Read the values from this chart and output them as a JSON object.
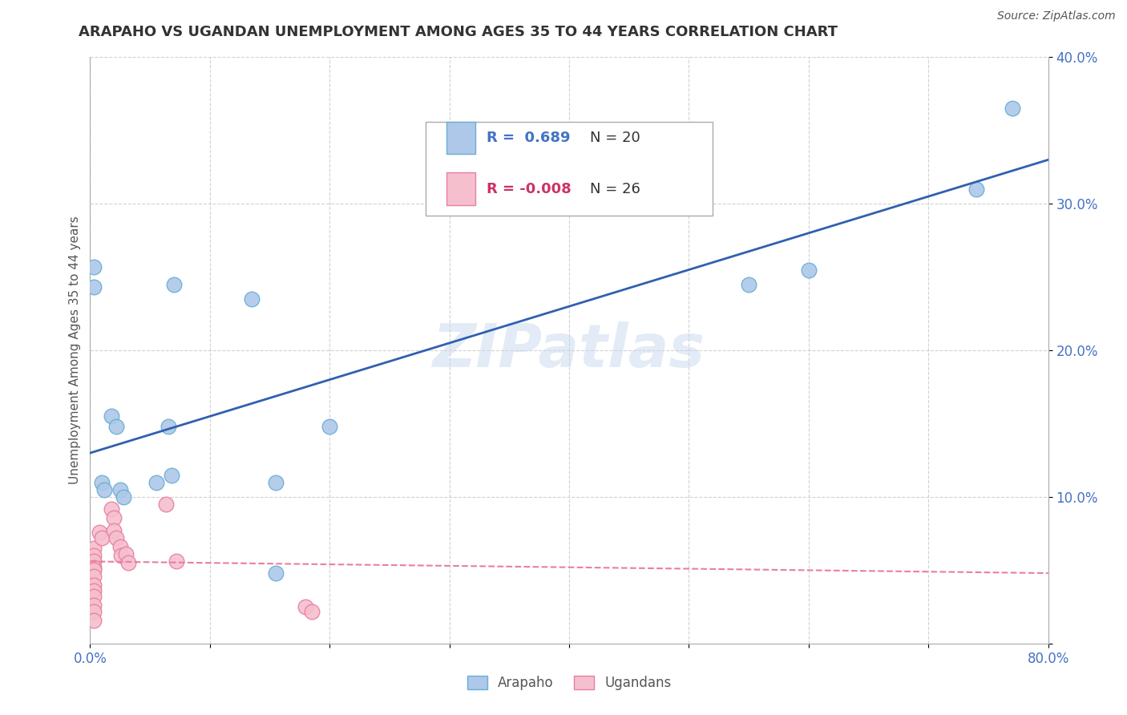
{
  "title": "ARAPAHO VS UGANDAN UNEMPLOYMENT AMONG AGES 35 TO 44 YEARS CORRELATION CHART",
  "source_text": "Source: ZipAtlas.com",
  "ylabel": "Unemployment Among Ages 35 to 44 years",
  "xlim": [
    0.0,
    0.8
  ],
  "ylim": [
    0.0,
    0.4
  ],
  "xticks": [
    0.0,
    0.1,
    0.2,
    0.3,
    0.4,
    0.5,
    0.6,
    0.7,
    0.8
  ],
  "xticklabels": [
    "0.0%",
    "",
    "",
    "",
    "",
    "",
    "",
    "",
    "80.0%"
  ],
  "yticks": [
    0.0,
    0.1,
    0.2,
    0.3,
    0.4
  ],
  "yticklabels": [
    "",
    "10.0%",
    "20.0%",
    "30.0%",
    "40.0%"
  ],
  "watermark": "ZIPatlas",
  "arapaho_color": "#adc8e8",
  "arapaho_edge_color": "#6aaed6",
  "ugandan_color": "#f5bfce",
  "ugandan_edge_color": "#e87fa0",
  "blue_line_color": "#3060b0",
  "pink_line_color": "#e87fa0",
  "grid_color": "#cccccc",
  "background_color": "#ffffff",
  "legend_R_arapaho": "R =  0.689",
  "legend_N_arapaho": "N = 20",
  "legend_R_ugandan": "R = -0.008",
  "legend_N_ugandan": "N = 26",
  "arapaho_x": [
    0.003,
    0.003,
    0.01,
    0.012,
    0.018,
    0.022,
    0.025,
    0.028,
    0.055,
    0.065,
    0.068,
    0.07,
    0.135,
    0.155,
    0.155,
    0.2,
    0.55,
    0.6,
    0.74,
    0.77
  ],
  "arapaho_y": [
    0.257,
    0.243,
    0.11,
    0.105,
    0.155,
    0.148,
    0.105,
    0.1,
    0.11,
    0.148,
    0.115,
    0.245,
    0.235,
    0.11,
    0.048,
    0.148,
    0.245,
    0.255,
    0.31,
    0.365
  ],
  "ugandan_x": [
    0.003,
    0.003,
    0.003,
    0.003,
    0.003,
    0.003,
    0.003,
    0.003,
    0.003,
    0.003,
    0.003,
    0.003,
    0.008,
    0.01,
    0.018,
    0.02,
    0.02,
    0.022,
    0.025,
    0.026,
    0.03,
    0.032,
    0.063,
    0.072,
    0.18,
    0.185
  ],
  "ugandan_y": [
    0.065,
    0.06,
    0.056,
    0.052,
    0.05,
    0.046,
    0.04,
    0.036,
    0.032,
    0.026,
    0.022,
    0.016,
    0.076,
    0.072,
    0.092,
    0.086,
    0.077,
    0.072,
    0.066,
    0.06,
    0.061,
    0.055,
    0.095,
    0.056,
    0.025,
    0.022
  ],
  "blue_line_x": [
    0.0,
    0.8
  ],
  "blue_line_y": [
    0.13,
    0.33
  ],
  "pink_line_x": [
    0.0,
    0.8
  ],
  "pink_line_y": [
    0.056,
    0.048
  ]
}
